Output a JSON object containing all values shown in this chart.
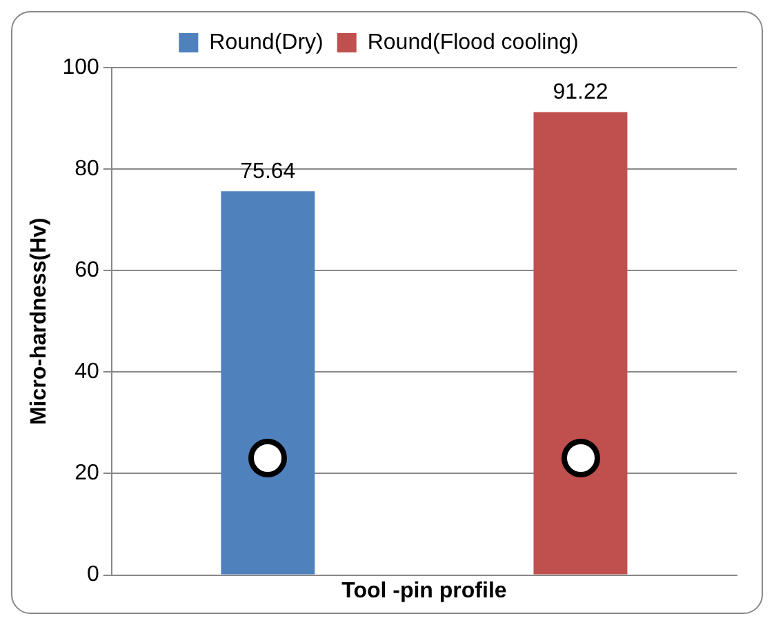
{
  "chart_data": {
    "type": "bar",
    "xlabel": "Tool -pin profile",
    "ylabel": "Micro-hardness(Hv)",
    "categories": [
      null
    ],
    "series": [
      {
        "name": "Round(Dry)",
        "color": "#4f81bd",
        "values": [
          75.64
        ]
      },
      {
        "name": "Round(Flood cooling)",
        "color": "#c0504d",
        "values": [
          91.22
        ]
      }
    ],
    "ylim": [
      0,
      100
    ],
    "yticks": [
      0,
      20,
      40,
      60,
      80,
      100
    ],
    "grid": "y",
    "legend": "top",
    "data_labels": true
  }
}
